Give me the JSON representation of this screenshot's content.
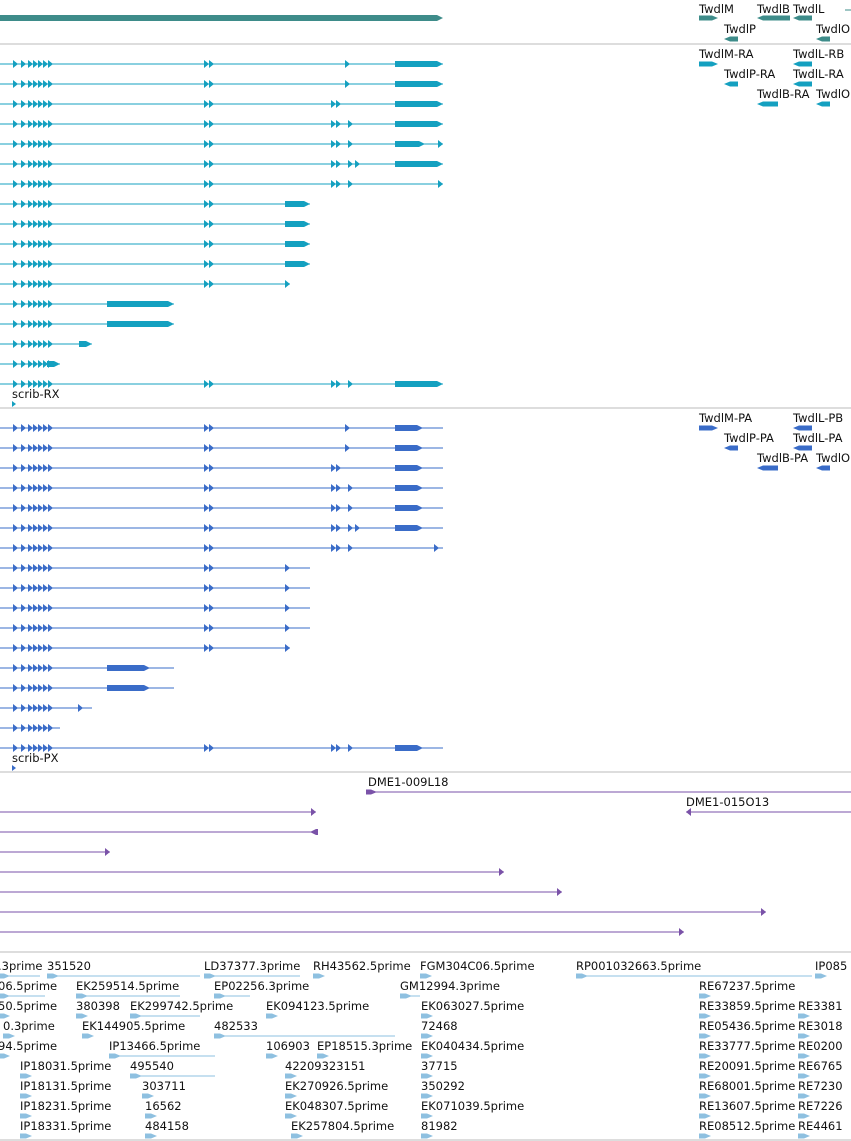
{
  "colors": {
    "gene": "#3e8c8a",
    "transcript_rna": "#14a0c0",
    "transcript_protein": "#3a6cc8",
    "clone": "#7a52a8",
    "est": "#8ec0e0",
    "separator": "#bbbbbb"
  },
  "tracks": {
    "gene": {
      "labels": [
        "TwdlM",
        "TwdlB",
        "TwdlL",
        "TwdlP",
        "TwdlO"
      ]
    },
    "rna": {
      "selected_label": "scrib-RX",
      "right_labels": [
        "TwdlM-RA",
        "TwdlL-RB",
        "TwdlP-RA",
        "TwdlL-RA",
        "TwdlB-RA",
        "TwdlO"
      ]
    },
    "protein": {
      "selected_label": "scrib-PX",
      "right_labels": [
        "TwdlM-PA",
        "TwdlL-PB",
        "TwdlP-PA",
        "TwdlL-PA",
        "TwdlB-PA",
        "TwdlO"
      ]
    },
    "clones": {
      "labels": [
        "DME1-009L18",
        "DME1-015O13"
      ]
    },
    "ests": {
      "labels": [
        ".3prime",
        "351520",
        "LD37377.3prime",
        "RH43562.5prime",
        "FGM304C06.5prime",
        "RP001032663.5prime",
        "IP085",
        "06.5prime",
        "EK259514.5prime",
        "EP02256.3prime",
        "GM12994.3prime",
        "RE67237.5prime",
        "50.5prime",
        "380398",
        "EK299742.5prime",
        "EK094123.5prime",
        "EK063027.5prime",
        "RE33859.5prime",
        "RE3381",
        "0.3prime",
        "EK144905.5prime",
        "482533",
        "72468",
        "RE05436.5prime",
        "RE3018",
        "94.5prime",
        "IP13466.5prime",
        "106903",
        "EP18515.3prime",
        "EK040434.5prime",
        "RE33777.5prime",
        "RE0200",
        "IP18031.5prime",
        "495540",
        "42209323151",
        "37715",
        "RE20091.5prime",
        "RE6765",
        "IP18131.5prime",
        "303711",
        "EK270926.5prime",
        "350292",
        "RE68001.5prime",
        "RE7230",
        "IP18231.5prime",
        "16562",
        "EK048307.5prime",
        "EK071039.5prime",
        "RE13607.5prime",
        "RE7226",
        "IP18331.5prime",
        "484158",
        "EK257804.5prime",
        "81982",
        "RE08512.5prime",
        "RE4461"
      ]
    }
  }
}
